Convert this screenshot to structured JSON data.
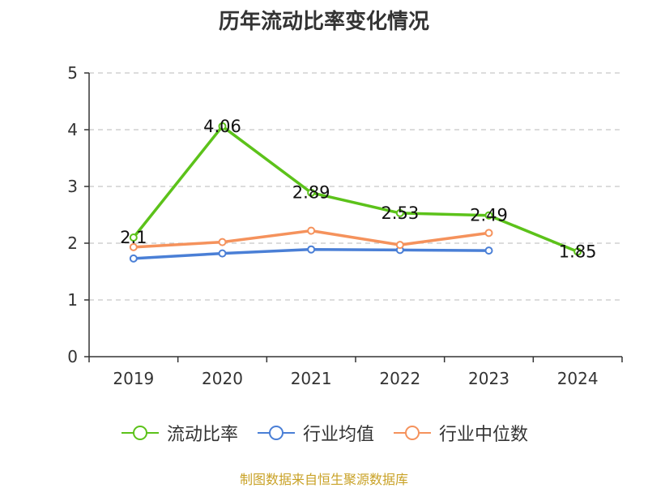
{
  "chart_data": {
    "type": "line",
    "title": "历年流动比率变化情况",
    "categories": [
      "2019",
      "2020",
      "2021",
      "2022",
      "2023",
      "2024"
    ],
    "ylim": [
      0,
      5
    ],
    "yticks": [
      "0",
      "1",
      "2",
      "3",
      "4",
      "5"
    ],
    "grid": true,
    "legend_position": "bottom",
    "series": [
      {
        "name": "流动比率",
        "color": "#5cc21a",
        "values": [
          2.1,
          4.06,
          2.89,
          2.53,
          2.49,
          1.85
        ],
        "labels": [
          "2.1",
          "4.06",
          "2.89",
          "2.53",
          "2.49",
          "1.85"
        ]
      },
      {
        "name": "行业均值",
        "color": "#4a7fd6",
        "values": [
          1.73,
          1.82,
          1.89,
          1.88,
          1.87,
          null
        ]
      },
      {
        "name": "行业中位数",
        "color": "#f5925c",
        "values": [
          1.93,
          2.02,
          2.22,
          1.97,
          2.18,
          null
        ]
      }
    ]
  },
  "source": "制图数据来自恒生聚源数据库"
}
